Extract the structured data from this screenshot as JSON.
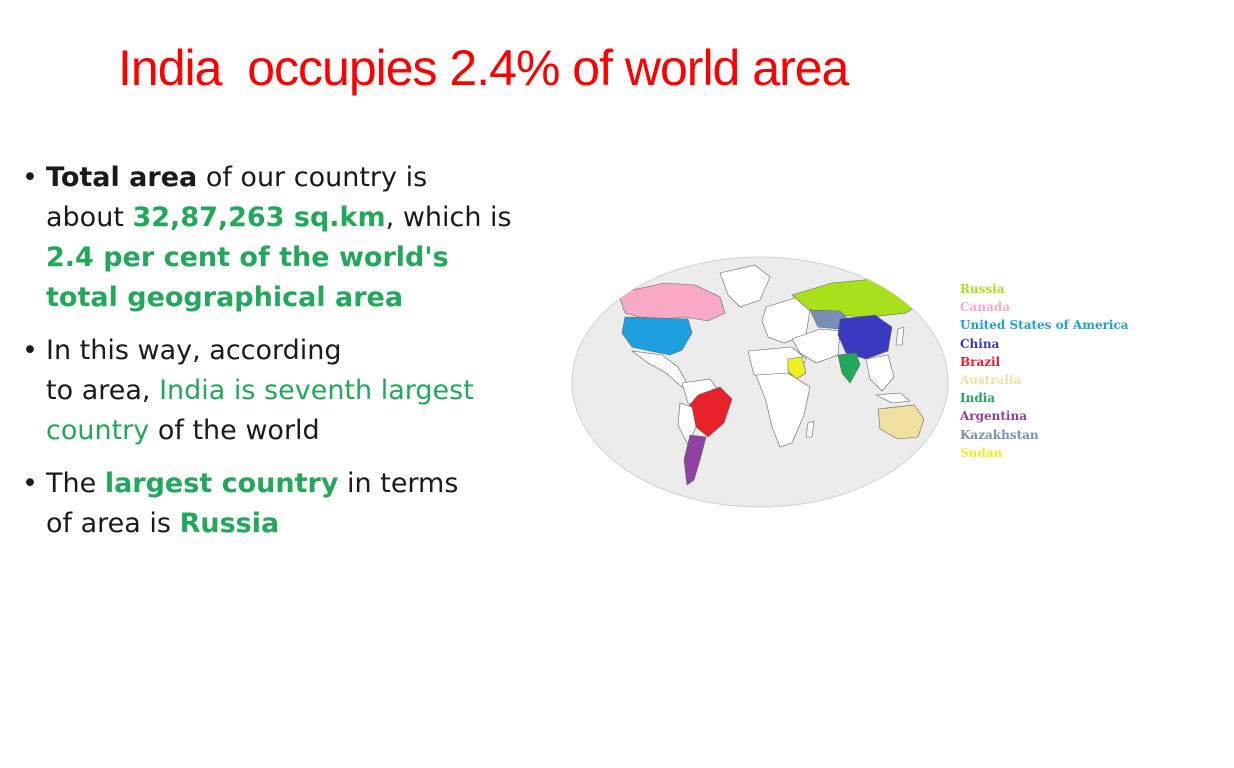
{
  "title": "India  occupies 2.4% of world area",
  "bullets": [
    {
      "lines": [
        [
          {
            "text": "Total area",
            "style": "b"
          },
          {
            "text": " of our country is",
            "style": ""
          }
        ],
        [
          {
            "text": "about ",
            "style": ""
          },
          {
            "text": "32,87,263 sq.km",
            "style": "b g"
          },
          {
            "text": ", which is",
            "style": ""
          }
        ],
        [
          {
            "text": "2.4 per cent of the world's",
            "style": "b g"
          }
        ],
        [
          {
            "text": "total geographical area",
            "style": "b g"
          }
        ]
      ]
    },
    {
      "lines": [
        [
          {
            "text": " In this way, according",
            "style": ""
          }
        ],
        [
          {
            "text": "to area, ",
            "style": ""
          },
          {
            "text": "India is seventh largest",
            "style": "g"
          }
        ],
        [
          {
            "text": "country",
            "style": "g"
          },
          {
            "text": " of the world",
            "style": ""
          }
        ]
      ]
    },
    {
      "lines": [
        [
          {
            "text": "The ",
            "style": ""
          },
          {
            "text": "largest country",
            "style": "b g"
          },
          {
            "text": " in terms",
            "style": ""
          }
        ],
        [
          {
            "text": "of area is ",
            "style": ""
          },
          {
            "text": "Russia",
            "style": "b g"
          }
        ]
      ]
    }
  ],
  "legend": [
    {
      "name": "Russia",
      "color": "#a8e01c"
    },
    {
      "name": "Canada",
      "color": "#f7a9c6"
    },
    {
      "name": "United States of America",
      "color": "#1ea0e0"
    },
    {
      "name": "China",
      "color": "#3a3ac0"
    },
    {
      "name": "Brazil",
      "color": "#e8202a"
    },
    {
      "name": "Australia",
      "color": "#f0e0a0"
    },
    {
      "name": "India",
      "color": "#22a85a"
    },
    {
      "name": "Argentina",
      "color": "#9040a0"
    },
    {
      "name": "Kazakhstan",
      "color": "#7890b8"
    },
    {
      "name": "Sudan",
      "color": "#f0f020"
    }
  ]
}
